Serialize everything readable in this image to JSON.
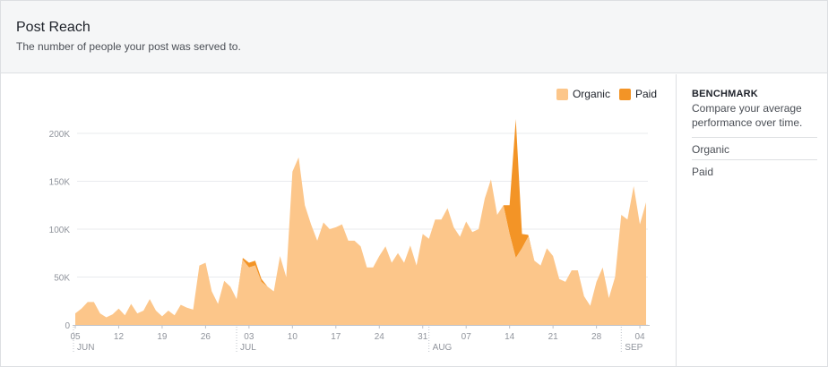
{
  "header": {
    "title": "Post Reach",
    "subtitle": "The number of people your post was served to."
  },
  "legend": {
    "items": [
      {
        "label": "Organic",
        "color": "#fcc68a"
      },
      {
        "label": "Paid",
        "color": "#f39426"
      }
    ]
  },
  "sidebar": {
    "title": "BENCHMARK",
    "description": "Compare your average performance over time.",
    "options": [
      "Organic",
      "Paid"
    ]
  },
  "chart_data": {
    "type": "area",
    "stacked": true,
    "ylim": [
      0,
      220000
    ],
    "yticks": [
      0,
      50000,
      100000,
      150000,
      200000
    ],
    "ytick_labels": [
      "0",
      "50K",
      "100K",
      "150K",
      "200K"
    ],
    "xtick_labels": [
      "05",
      "12",
      "19",
      "26",
      "03",
      "10",
      "17",
      "24",
      "31",
      "07",
      "14",
      "21",
      "28",
      "04"
    ],
    "month_labels": [
      "JUN",
      "JUL",
      "AUG",
      "SEP"
    ],
    "grid": true,
    "legend_position": "top-right",
    "x": [
      "06-05",
      "06-06",
      "06-07",
      "06-08",
      "06-09",
      "06-10",
      "06-11",
      "06-12",
      "06-13",
      "06-14",
      "06-15",
      "06-16",
      "06-17",
      "06-18",
      "06-19",
      "06-20",
      "06-21",
      "06-22",
      "06-23",
      "06-24",
      "06-25",
      "06-26",
      "06-27",
      "06-28",
      "06-29",
      "06-30",
      "07-01",
      "07-02",
      "07-03",
      "07-04",
      "07-05",
      "07-06",
      "07-07",
      "07-08",
      "07-09",
      "07-10",
      "07-11",
      "07-12",
      "07-13",
      "07-14",
      "07-15",
      "07-16",
      "07-17",
      "07-18",
      "07-19",
      "07-20",
      "07-21",
      "07-22",
      "07-23",
      "07-24",
      "07-25",
      "07-26",
      "07-27",
      "07-28",
      "07-29",
      "07-30",
      "07-31",
      "08-01",
      "08-02",
      "08-03",
      "08-04",
      "08-05",
      "08-06",
      "08-07",
      "08-08",
      "08-09",
      "08-10",
      "08-11",
      "08-12",
      "08-13",
      "08-14",
      "08-15",
      "08-16",
      "08-17",
      "08-18",
      "08-19",
      "08-20",
      "08-21",
      "08-22",
      "08-23",
      "08-24",
      "08-25",
      "08-26",
      "08-27",
      "08-28",
      "08-29",
      "08-30",
      "08-31",
      "09-01",
      "09-02",
      "09-03",
      "09-04",
      "09-05"
    ],
    "series": [
      {
        "name": "Organic",
        "color": "#fcc68a",
        "values": [
          12000,
          17000,
          24000,
          24000,
          12000,
          8000,
          11000,
          17000,
          10000,
          22000,
          12000,
          15000,
          27000,
          15000,
          9000,
          15000,
          10000,
          21000,
          18000,
          16000,
          62000,
          65000,
          35000,
          22000,
          46000,
          40000,
          27000,
          68000,
          60000,
          62000,
          45000,
          40000,
          35000,
          72000,
          50000,
          160000,
          175000,
          125000,
          105000,
          88000,
          107000,
          100000,
          102000,
          105000,
          88000,
          88000,
          82000,
          60000,
          60000,
          72000,
          82000,
          65000,
          75000,
          65000,
          83000,
          62000,
          95000,
          90000,
          110000,
          110000,
          122000,
          102000,
          92000,
          108000,
          97000,
          100000,
          132000,
          152000,
          115000,
          125000,
          95000,
          70000,
          80000,
          92000,
          67000,
          62000,
          80000,
          72000,
          48000,
          45000,
          57000,
          57000,
          30000,
          20000,
          45000,
          60000,
          28000,
          50000,
          115000,
          110000,
          145000,
          105000,
          128000
        ]
      },
      {
        "name": "Paid",
        "color": "#f39426",
        "values": [
          0,
          0,
          0,
          0,
          0,
          0,
          0,
          0,
          0,
          0,
          0,
          0,
          0,
          0,
          0,
          0,
          0,
          0,
          0,
          0,
          0,
          0,
          0,
          0,
          0,
          0,
          0,
          2000,
          5000,
          5000,
          3000,
          0,
          0,
          0,
          0,
          0,
          0,
          0,
          0,
          0,
          0,
          0,
          0,
          0,
          0,
          0,
          0,
          0,
          0,
          0,
          0,
          0,
          0,
          0,
          0,
          0,
          0,
          0,
          0,
          0,
          0,
          0,
          0,
          0,
          0,
          0,
          0,
          0,
          0,
          0,
          30000,
          145000,
          15000,
          2000,
          0,
          0,
          0,
          0,
          0,
          0,
          0,
          0,
          0,
          0,
          0,
          0,
          0,
          0,
          0,
          0,
          0,
          0,
          0
        ]
      }
    ]
  }
}
